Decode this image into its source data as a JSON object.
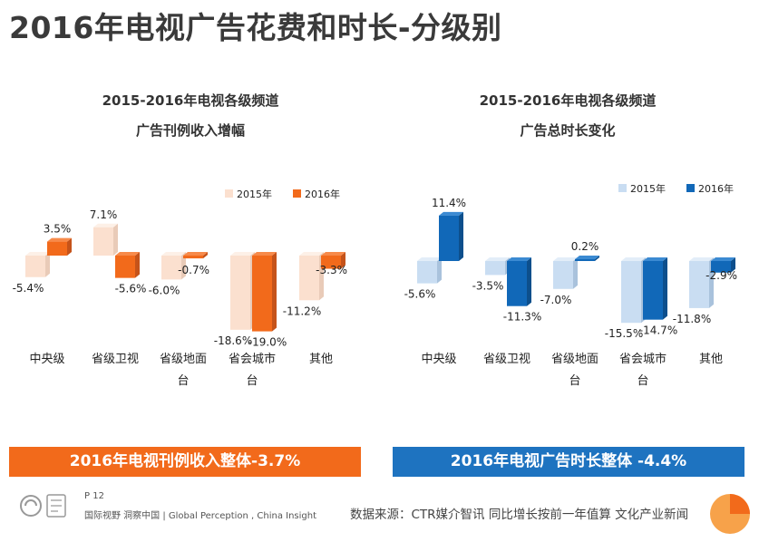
{
  "page": {
    "title": "2016年电视广告花费和时长-分级别",
    "left_banner": "2016年电视刊例收入整体-3.7%",
    "right_banner": "2016年电视广告时长整体 -4.4%",
    "page_number": "P 12",
    "tagline": "国际视野  洞察中国 |  Global Perception , China Insight",
    "source": "数据来源：CTR媒介智讯   同比增长按前一年值算  文化产业新闻",
    "colors": {
      "left_banner": "#f26a1b",
      "right_banner": "#1e73c0",
      "light_orange": "#fbe0cf",
      "orange": "#f26a1b",
      "light_blue": "#c9ddf2",
      "blue": "#1168b8"
    }
  },
  "chart_data": [
    {
      "type": "bar",
      "title_line1": "2015-2016年电视各级频道",
      "title_line2": "广告刊例收入增幅",
      "categories": [
        "中央级",
        "省级卫视",
        "省级地面台",
        "省会城市台",
        "其他"
      ],
      "category_lines": [
        [
          "中央级"
        ],
        [
          "省级卫视"
        ],
        [
          "省级地面",
          "台"
        ],
        [
          "省会城市",
          "台"
        ],
        [
          "其他"
        ]
      ],
      "series": [
        {
          "name": "2015年",
          "values": [
            -5.4,
            7.1,
            -6.0,
            -18.6,
            -11.2
          ],
          "labels": [
            "-5.4%",
            "7.1%",
            "-6.0%",
            "-18.6%",
            "-11.2%"
          ]
        },
        {
          "name": "2016年",
          "values": [
            3.5,
            -5.6,
            -0.7,
            -19.0,
            -3.3
          ],
          "labels": [
            "3.5%",
            "-5.6%",
            "-0.7%",
            "-19.0%",
            "-3.3%"
          ]
        }
      ],
      "unit": "%",
      "ylim": [
        -20,
        12
      ]
    },
    {
      "type": "bar",
      "title_line1": "2015-2016年电视各级频道",
      "title_line2": "广告总时长变化",
      "categories": [
        "中央级",
        "省级卫视",
        "省级地面台",
        "省会城市台",
        "其他"
      ],
      "category_lines": [
        [
          "中央级"
        ],
        [
          "省级卫视"
        ],
        [
          "省级地面",
          "台"
        ],
        [
          "省会城市",
          "台"
        ],
        [
          "其他"
        ]
      ],
      "series": [
        {
          "name": "2015年",
          "values": [
            -5.6,
            -3.5,
            -7.0,
            -15.5,
            -11.8
          ],
          "labels": [
            "-5.6%",
            "-3.5%",
            "-7.0%",
            "-15.5%",
            "-11.8%"
          ]
        },
        {
          "name": "2016年",
          "values": [
            11.4,
            -11.3,
            0.2,
            -14.7,
            -2.9
          ],
          "labels": [
            "11.4%",
            "-11.3%",
            "0.2%",
            "-14.7%",
            "-2.9%"
          ]
        }
      ],
      "unit": "%",
      "ylim": [
        -20,
        12
      ]
    }
  ]
}
